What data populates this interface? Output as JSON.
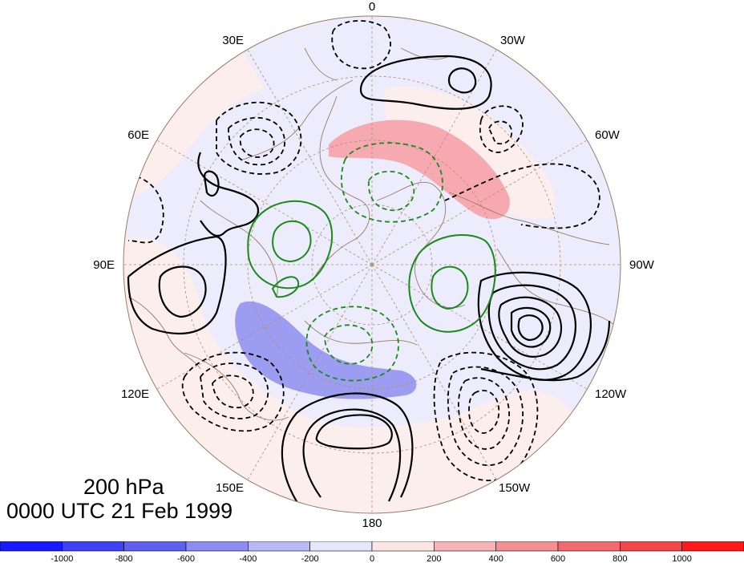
{
  "title": {
    "level": "200 hPa",
    "time": "0000 UTC 21 Feb 1999"
  },
  "map": {
    "projection": "north-polar-stereographic",
    "longitude_labels": [
      "0",
      "30W",
      "60W",
      "90W",
      "120W",
      "150W",
      "180",
      "150E",
      "120E",
      "90E",
      "60E",
      "30E"
    ],
    "contour_colors": {
      "positive": "#000000",
      "negative": "#000000",
      "green": "#1a8a1a"
    },
    "shading_colors": {
      "positive_weak": "#fdeeee",
      "negative_weak": "#ececfc",
      "positive_strong": "#f6a9b0",
      "negative_strong": "#9c9cf0"
    }
  },
  "colorbar": {
    "tick_labels": [
      "-1000",
      "-800",
      "-600",
      "-400",
      "-200",
      "0",
      "200",
      "400",
      "600",
      "800",
      "1000"
    ],
    "colors": [
      "#1a1aff",
      "#4040f4",
      "#6060f0",
      "#8c8cf2",
      "#b8b8f6",
      "#e6e6fc",
      "#fce6e6",
      "#f6b4b8",
      "#f49094",
      "#f06a70",
      "#f04848",
      "#ff1a1a"
    ]
  }
}
